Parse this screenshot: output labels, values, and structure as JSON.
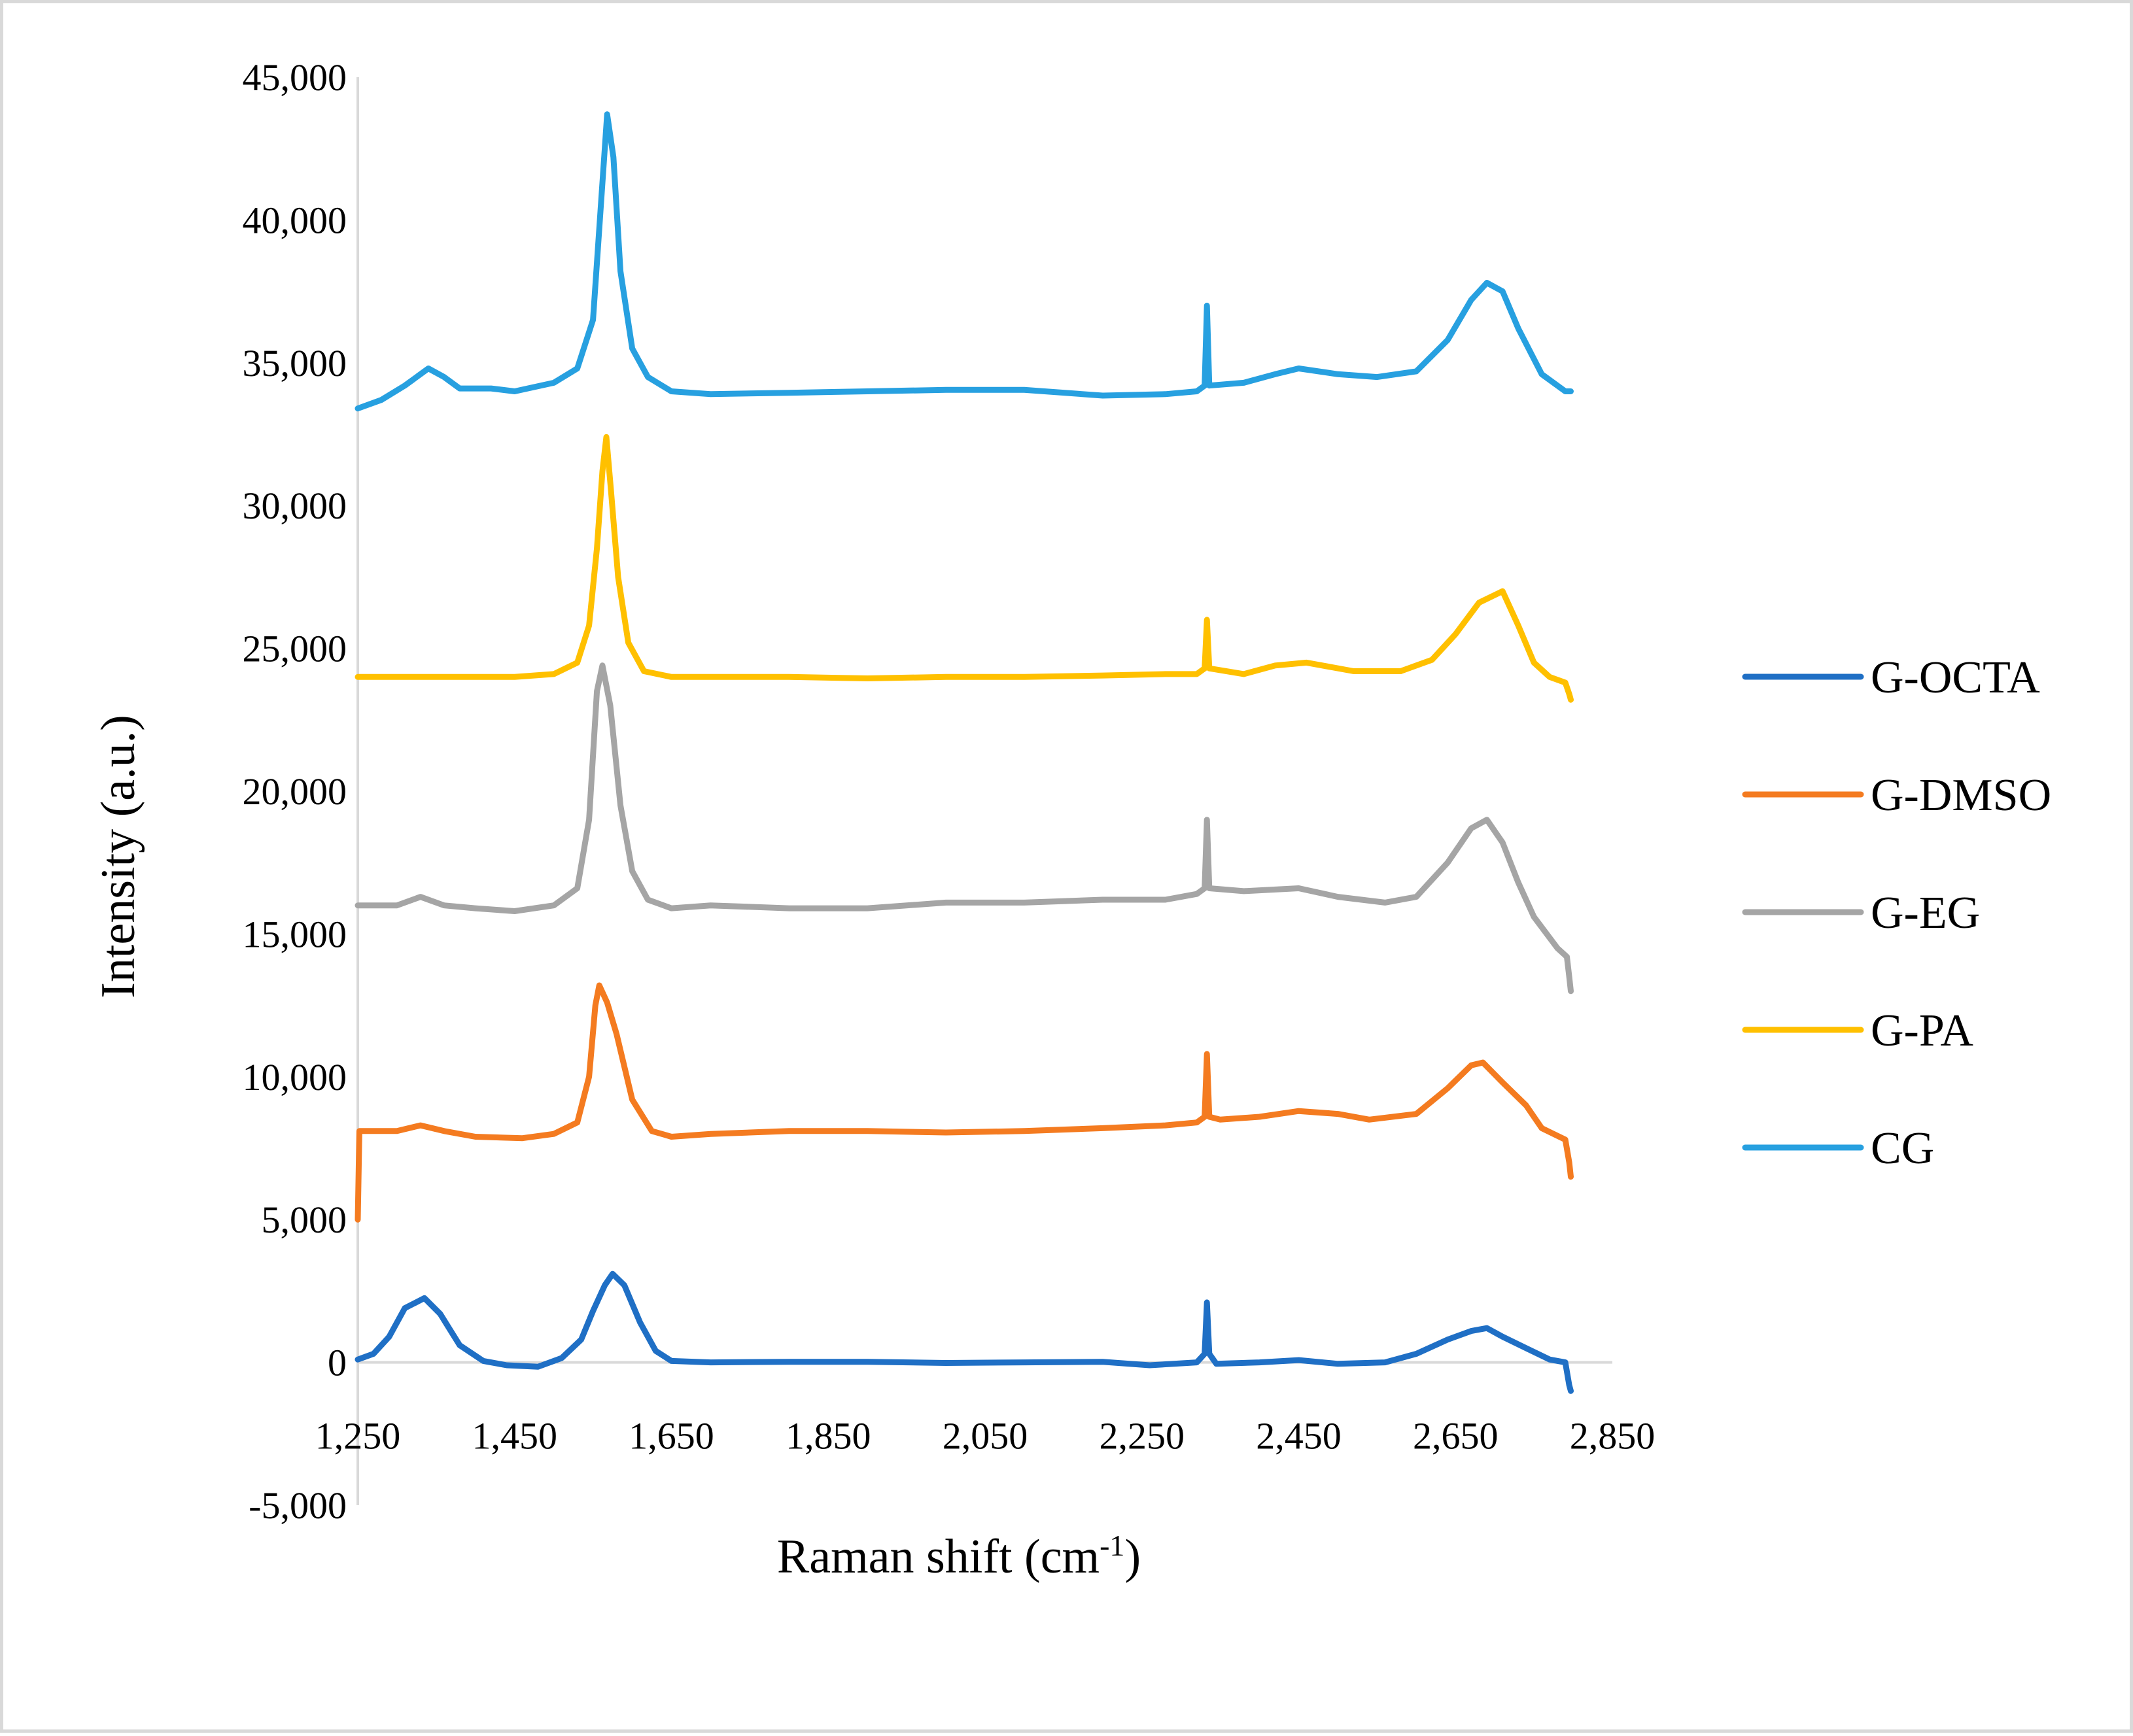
{
  "chart_data": {
    "type": "line",
    "title": "",
    "xlabel": "Raman shift (cm",
    "xlabel_sup": "-1",
    "xlabel_suffix": ")",
    "ylabel": "Intensity (a.u.)",
    "xlim": [
      1250,
      2850
    ],
    "ylim": [
      -5000,
      45000
    ],
    "x_ticks": [
      1250,
      1450,
      1650,
      1850,
      2050,
      2250,
      2450,
      2650,
      2850
    ],
    "x_tick_labels": [
      "1,250",
      "1,450",
      "1,650",
      "1,850",
      "2,050",
      "2,250",
      "2,450",
      "2,650",
      "2,850"
    ],
    "y_ticks": [
      -5000,
      0,
      5000,
      10000,
      15000,
      20000,
      25000,
      30000,
      35000,
      40000,
      45000
    ],
    "y_tick_labels": [
      "-5,000",
      "0",
      "5,000",
      "10,000",
      "15,000",
      "20,000",
      "25,000",
      "30,000",
      "35,000",
      "40,000",
      "45,000"
    ],
    "grid": false,
    "legend_position": "right",
    "series": [
      {
        "name": "G-OCTA",
        "color": "#1f6fc5",
        "points": [
          [
            1250,
            100
          ],
          [
            1270,
            300
          ],
          [
            1290,
            900
          ],
          [
            1310,
            1900
          ],
          [
            1335,
            2250
          ],
          [
            1355,
            1700
          ],
          [
            1380,
            600
          ],
          [
            1410,
            50
          ],
          [
            1440,
            -100
          ],
          [
            1480,
            -150
          ],
          [
            1510,
            150
          ],
          [
            1535,
            800
          ],
          [
            1550,
            1800
          ],
          [
            1565,
            2700
          ],
          [
            1575,
            3100
          ],
          [
            1590,
            2700
          ],
          [
            1610,
            1400
          ],
          [
            1630,
            400
          ],
          [
            1650,
            50
          ],
          [
            1700,
            0
          ],
          [
            1800,
            20
          ],
          [
            1900,
            20
          ],
          [
            2000,
            -20
          ],
          [
            2100,
            0
          ],
          [
            2200,
            20
          ],
          [
            2260,
            -100
          ],
          [
            2320,
            0
          ],
          [
            2330,
            300
          ],
          [
            2333,
            2100
          ],
          [
            2336,
            300
          ],
          [
            2345,
            -50
          ],
          [
            2400,
            0
          ],
          [
            2450,
            80
          ],
          [
            2500,
            -50
          ],
          [
            2560,
            0
          ],
          [
            2600,
            300
          ],
          [
            2640,
            800
          ],
          [
            2670,
            1100
          ],
          [
            2690,
            1200
          ],
          [
            2710,
            900
          ],
          [
            2740,
            500
          ],
          [
            2770,
            100
          ],
          [
            2790,
            0
          ],
          [
            2795,
            -800
          ],
          [
            2797,
            -1000
          ]
        ]
      },
      {
        "name": "G-DMSO",
        "color": "#f47b20",
        "points": [
          [
            1250,
            5000
          ],
          [
            1252,
            8100
          ],
          [
            1300,
            8100
          ],
          [
            1330,
            8300
          ],
          [
            1360,
            8100
          ],
          [
            1400,
            7900
          ],
          [
            1460,
            7850
          ],
          [
            1500,
            8000
          ],
          [
            1530,
            8400
          ],
          [
            1545,
            10000
          ],
          [
            1553,
            12500
          ],
          [
            1558,
            13200
          ],
          [
            1568,
            12600
          ],
          [
            1580,
            11500
          ],
          [
            1600,
            9200
          ],
          [
            1625,
            8100
          ],
          [
            1650,
            7900
          ],
          [
            1700,
            8000
          ],
          [
            1800,
            8100
          ],
          [
            1900,
            8100
          ],
          [
            2000,
            8050
          ],
          [
            2100,
            8100
          ],
          [
            2200,
            8200
          ],
          [
            2280,
            8300
          ],
          [
            2320,
            8400
          ],
          [
            2330,
            8600
          ],
          [
            2333,
            10800
          ],
          [
            2336,
            8600
          ],
          [
            2350,
            8500
          ],
          [
            2400,
            8600
          ],
          [
            2450,
            8800
          ],
          [
            2500,
            8700
          ],
          [
            2540,
            8500
          ],
          [
            2600,
            8700
          ],
          [
            2640,
            9600
          ],
          [
            2670,
            10400
          ],
          [
            2685,
            10500
          ],
          [
            2710,
            9800
          ],
          [
            2740,
            9000
          ],
          [
            2760,
            8200
          ],
          [
            2790,
            7800
          ],
          [
            2795,
            7000
          ],
          [
            2797,
            6500
          ]
        ]
      },
      {
        "name": "G-EG",
        "color": "#a5a5a5",
        "points": [
          [
            1250,
            16000
          ],
          [
            1300,
            16000
          ],
          [
            1330,
            16300
          ],
          [
            1360,
            16000
          ],
          [
            1400,
            15900
          ],
          [
            1450,
            15800
          ],
          [
            1500,
            16000
          ],
          [
            1530,
            16600
          ],
          [
            1545,
            19000
          ],
          [
            1555,
            23500
          ],
          [
            1562,
            24400
          ],
          [
            1572,
            23000
          ],
          [
            1585,
            19500
          ],
          [
            1600,
            17200
          ],
          [
            1620,
            16200
          ],
          [
            1650,
            15900
          ],
          [
            1700,
            16000
          ],
          [
            1800,
            15900
          ],
          [
            1900,
            15900
          ],
          [
            2000,
            16100
          ],
          [
            2100,
            16100
          ],
          [
            2200,
            16200
          ],
          [
            2280,
            16200
          ],
          [
            2320,
            16400
          ],
          [
            2330,
            16600
          ],
          [
            2333,
            19000
          ],
          [
            2336,
            16600
          ],
          [
            2380,
            16500
          ],
          [
            2450,
            16600
          ],
          [
            2500,
            16300
          ],
          [
            2560,
            16100
          ],
          [
            2600,
            16300
          ],
          [
            2640,
            17500
          ],
          [
            2670,
            18700
          ],
          [
            2690,
            19000
          ],
          [
            2710,
            18200
          ],
          [
            2730,
            16800
          ],
          [
            2750,
            15600
          ],
          [
            2780,
            14500
          ],
          [
            2792,
            14200
          ],
          [
            2795,
            13500
          ],
          [
            2797,
            13000
          ]
        ]
      },
      {
        "name": "G-PA",
        "color": "#ffc000",
        "points": [
          [
            1250,
            24000
          ],
          [
            1300,
            24000
          ],
          [
            1340,
            24000
          ],
          [
            1400,
            24000
          ],
          [
            1450,
            24000
          ],
          [
            1500,
            24100
          ],
          [
            1530,
            24500
          ],
          [
            1545,
            25800
          ],
          [
            1555,
            28500
          ],
          [
            1562,
            31200
          ],
          [
            1567,
            32400
          ],
          [
            1573,
            30500
          ],
          [
            1582,
            27500
          ],
          [
            1595,
            25200
          ],
          [
            1615,
            24200
          ],
          [
            1650,
            24000
          ],
          [
            1700,
            24000
          ],
          [
            1800,
            24000
          ],
          [
            1900,
            23950
          ],
          [
            2000,
            24000
          ],
          [
            2100,
            24000
          ],
          [
            2200,
            24050
          ],
          [
            2280,
            24100
          ],
          [
            2320,
            24100
          ],
          [
            2330,
            24300
          ],
          [
            2333,
            26000
          ],
          [
            2336,
            24300
          ],
          [
            2380,
            24100
          ],
          [
            2420,
            24400
          ],
          [
            2460,
            24500
          ],
          [
            2520,
            24200
          ],
          [
            2580,
            24200
          ],
          [
            2620,
            24600
          ],
          [
            2650,
            25500
          ],
          [
            2680,
            26600
          ],
          [
            2710,
            27000
          ],
          [
            2730,
            25800
          ],
          [
            2750,
            24500
          ],
          [
            2770,
            24000
          ],
          [
            2790,
            23800
          ],
          [
            2795,
            23400
          ],
          [
            2797,
            23200
          ]
        ]
      },
      {
        "name": "CG",
        "color": "#27a0e0",
        "points": [
          [
            1250,
            33400
          ],
          [
            1280,
            33700
          ],
          [
            1310,
            34200
          ],
          [
            1340,
            34800
          ],
          [
            1360,
            34500
          ],
          [
            1380,
            34100
          ],
          [
            1420,
            34100
          ],
          [
            1450,
            34000
          ],
          [
            1500,
            34300
          ],
          [
            1530,
            34800
          ],
          [
            1550,
            36500
          ],
          [
            1560,
            40500
          ],
          [
            1568,
            43700
          ],
          [
            1576,
            42200
          ],
          [
            1585,
            38200
          ],
          [
            1600,
            35500
          ],
          [
            1620,
            34500
          ],
          [
            1650,
            34000
          ],
          [
            1700,
            33900
          ],
          [
            1800,
            33950
          ],
          [
            1900,
            34000
          ],
          [
            2000,
            34050
          ],
          [
            2100,
            34050
          ],
          [
            2200,
            33850
          ],
          [
            2280,
            33900
          ],
          [
            2320,
            34000
          ],
          [
            2330,
            34200
          ],
          [
            2333,
            37000
          ],
          [
            2336,
            34200
          ],
          [
            2380,
            34300
          ],
          [
            2420,
            34600
          ],
          [
            2450,
            34800
          ],
          [
            2500,
            34600
          ],
          [
            2550,
            34500
          ],
          [
            2600,
            34700
          ],
          [
            2640,
            35800
          ],
          [
            2670,
            37200
          ],
          [
            2690,
            37800
          ],
          [
            2710,
            37500
          ],
          [
            2730,
            36200
          ],
          [
            2760,
            34600
          ],
          [
            2790,
            34000
          ],
          [
            2797,
            34000
          ]
        ]
      }
    ]
  }
}
